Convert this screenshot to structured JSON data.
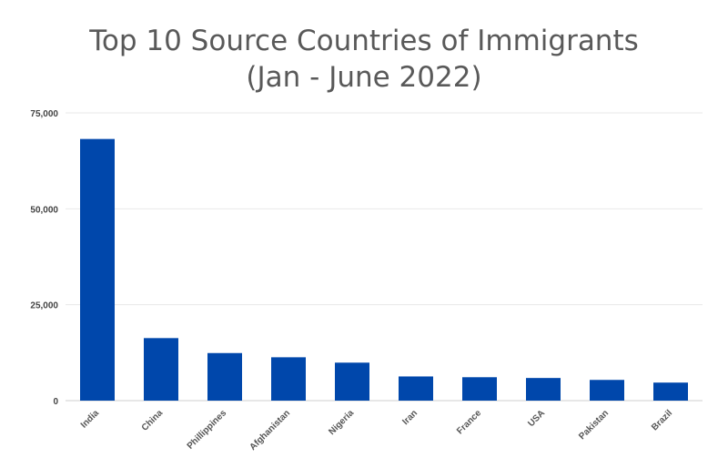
{
  "chart_data": {
    "type": "bar",
    "title": "Top 10 Source Countries of Immigrants",
    "subtitle": "(Jan - June 2022)",
    "xlabel": "",
    "ylabel": "",
    "categories": [
      "India",
      "China",
      "Phillippines",
      "Afghanistan",
      "Nigeria",
      "Iran",
      "France",
      "USA",
      "Pakistan",
      "Brazil"
    ],
    "values": [
      68200,
      16300,
      12400,
      11300,
      9900,
      6300,
      6100,
      5900,
      5400,
      4700
    ],
    "ylim": [
      0,
      75000
    ],
    "yticks": [
      0,
      25000,
      50000,
      75000
    ],
    "ytick_labels": [
      "0",
      "25,000",
      "50,000",
      "75,000"
    ],
    "grid": true,
    "legend": "none",
    "bar_color": "#0047ab"
  }
}
